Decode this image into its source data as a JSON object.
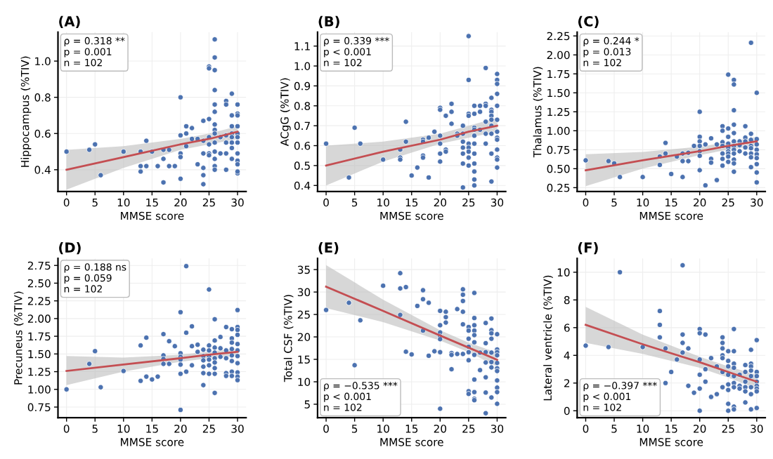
{
  "chart_data": [
    {
      "type": "scatter",
      "title": "(A)",
      "xlabel": "MMSE score",
      "ylabel": "Hippocampus (%TIV)",
      "xlim": [
        -1.5,
        31.5
      ],
      "xticks": [
        0,
        5,
        10,
        15,
        20,
        25,
        30
      ],
      "ylim": [
        0.28,
        1.16
      ],
      "yticks": [
        {
          "value": 0.4,
          "label": "0.4"
        },
        {
          "value": 0.6,
          "label": "0.6"
        },
        {
          "value": 0.8,
          "label": "0.8"
        },
        {
          "value": 1.0,
          "label": "1.0"
        }
      ],
      "grid": true,
      "annotations": [
        "ρ = 0.318 **\np = 0.001\nn = 102"
      ],
      "series": [
        {
          "type": "scatter",
          "marker": "circle",
          "color": "#4c72b0",
          "x": [
            0,
            4,
            5,
            6,
            10,
            13,
            13,
            13,
            14,
            14,
            15,
            16,
            17,
            17,
            17,
            18,
            18,
            19,
            20,
            20,
            20,
            20,
            20,
            21,
            21,
            21,
            22,
            22,
            23,
            23,
            24,
            24,
            24,
            24,
            24,
            24,
            25,
            25,
            25,
            25,
            25,
            25,
            25,
            26,
            26,
            26,
            26,
            26,
            26,
            26,
            26,
            26,
            26,
            26,
            26,
            26,
            26,
            27,
            27,
            28,
            28,
            28,
            28,
            28,
            28,
            29,
            29,
            29,
            29,
            29,
            29,
            29,
            29,
            30,
            30,
            30,
            30,
            30,
            30,
            30,
            30,
            30,
            30,
            30,
            30
          ],
          "values": [
            0.5,
            0.51,
            0.54,
            0.37,
            0.5,
            0.5,
            0.42,
            0.39,
            0.42,
            0.56,
            0.5,
            0.42,
            0.33,
            0.46,
            0.51,
            0.51,
            0.42,
            0.42,
            0.8,
            0.59,
            0.49,
            0.47,
            0.35,
            0.64,
            0.6,
            0.53,
            0.63,
            0.57,
            0.43,
            0.57,
            0.67,
            0.49,
            0.41,
            0.37,
            0.32,
            0.56,
            0.97,
            0.96,
            0.68,
            0.58,
            0.54,
            0.49,
            0.48,
            1.12,
            1.02,
            0.95,
            0.84,
            0.76,
            0.72,
            0.65,
            0.62,
            0.6,
            0.55,
            0.5,
            0.46,
            0.42,
            0.4,
            0.58,
            0.49,
            0.78,
            0.76,
            0.59,
            0.55,
            0.49,
            0.4,
            0.82,
            0.7,
            0.64,
            0.6,
            0.58,
            0.55,
            0.52,
            0.46,
            0.76,
            0.71,
            0.7,
            0.64,
            0.6,
            0.58,
            0.55,
            0.49,
            0.45,
            0.43,
            0.38,
            0.39
          ]
        },
        {
          "type": "line",
          "color": "#c44e52",
          "x": [
            0,
            10,
            20,
            25,
            30
          ],
          "values": [
            0.4,
            0.47,
            0.54,
            0.57,
            0.61
          ],
          "lower": [
            0.29,
            0.41,
            0.51,
            0.54,
            0.57
          ],
          "upper": [
            0.51,
            0.53,
            0.57,
            0.6,
            0.64
          ]
        }
      ]
    },
    {
      "type": "scatter",
      "title": "(B)",
      "xlabel": "MMSE score",
      "ylabel": "ACgG (%TIV)",
      "xlim": [
        -1.5,
        31.5
      ],
      "xticks": [
        0,
        5,
        10,
        15,
        20,
        25,
        30
      ],
      "ylim": [
        0.37,
        1.17
      ],
      "yticks": [
        {
          "value": 0.4,
          "label": "0.4"
        },
        {
          "value": 0.5,
          "label": "0.5"
        },
        {
          "value": 0.6,
          "label": "0.6"
        },
        {
          "value": 0.7,
          "label": "0.7"
        },
        {
          "value": 0.8,
          "label": "0.8"
        },
        {
          "value": 0.9,
          "label": "0.9"
        },
        {
          "value": 1.0,
          "label": "1.0"
        },
        {
          "value": 1.1,
          "label": "1.1"
        }
      ],
      "grid": true,
      "annotations": [
        "ρ = 0.339 ***\np < 0.001\nn = 102"
      ],
      "series": [
        {
          "type": "scatter",
          "marker": "circle",
          "color": "#4c72b0",
          "x": [
            0,
            4,
            5,
            6,
            10,
            13,
            13,
            13,
            14,
            14,
            15,
            16,
            17,
            17,
            17,
            17,
            18,
            18,
            19,
            20,
            20,
            20,
            20,
            20,
            20,
            21,
            21,
            21,
            22,
            22,
            22,
            23,
            23,
            24,
            24,
            24,
            24,
            24,
            24,
            24,
            25,
            25,
            25,
            25,
            25,
            25,
            25,
            25,
            25,
            26,
            26,
            26,
            26,
            26,
            26,
            26,
            26,
            26,
            26,
            26,
            27,
            27,
            27,
            28,
            28,
            28,
            28,
            28,
            28,
            29,
            29,
            29,
            29,
            29,
            29,
            29,
            29,
            29,
            30,
            30,
            30,
            30,
            30,
            30,
            30,
            30,
            30,
            30,
            30,
            30,
            30
          ],
          "values": [
            0.61,
            0.44,
            0.69,
            0.61,
            0.53,
            0.58,
            0.54,
            0.53,
            0.72,
            0.62,
            0.45,
            0.49,
            0.63,
            0.62,
            0.55,
            0.54,
            0.64,
            0.44,
            0.67,
            0.79,
            0.78,
            0.65,
            0.61,
            0.56,
            0.52,
            0.75,
            0.58,
            0.57,
            0.81,
            0.77,
            0.71,
            0.66,
            0.65,
            0.7,
            0.66,
            0.62,
            0.59,
            0.56,
            0.51,
            0.39,
            1.15,
            0.93,
            0.76,
            0.75,
            0.61,
            0.59,
            0.57,
            0.54,
            0.5,
            0.8,
            0.76,
            0.69,
            0.68,
            0.65,
            0.61,
            0.56,
            0.51,
            0.47,
            0.43,
            0.4,
            0.8,
            0.77,
            0.68,
            0.99,
            0.81,
            0.8,
            0.72,
            0.66,
            0.61,
            0.84,
            0.78,
            0.77,
            0.75,
            0.73,
            0.7,
            0.66,
            0.56,
            0.42,
            0.96,
            0.93,
            0.91,
            0.86,
            0.8,
            0.73,
            0.67,
            0.64,
            0.63,
            0.58,
            0.54,
            0.53,
            0.49
          ]
        },
        {
          "type": "line",
          "color": "#c44e52",
          "x": [
            0,
            10,
            20,
            25,
            30
          ],
          "values": [
            0.5,
            0.57,
            0.63,
            0.67,
            0.7
          ],
          "lower": [
            0.4,
            0.52,
            0.61,
            0.64,
            0.67
          ],
          "upper": [
            0.6,
            0.62,
            0.66,
            0.7,
            0.74
          ]
        }
      ]
    },
    {
      "type": "scatter",
      "title": "(C)",
      "xlabel": "MMSE score",
      "ylabel": "Thalamus (%TIV)",
      "xlim": [
        -1.5,
        31.5
      ],
      "xticks": [
        0,
        5,
        10,
        15,
        20,
        25,
        30
      ],
      "ylim": [
        0.2,
        2.3
      ],
      "yticks": [
        {
          "value": 0.25,
          "label": "0.25"
        },
        {
          "value": 0.5,
          "label": "0.50"
        },
        {
          "value": 0.75,
          "label": "0.75"
        },
        {
          "value": 1.0,
          "label": "1.00"
        },
        {
          "value": 1.25,
          "label": "1.25"
        },
        {
          "value": 1.5,
          "label": "1.50"
        },
        {
          "value": 1.75,
          "label": "1.75"
        },
        {
          "value": 2.0,
          "label": "2.00"
        },
        {
          "value": 2.25,
          "label": "2.25"
        }
      ],
      "grid": true,
      "annotations": [
        "ρ = 0.244 *\np = 0.013\nn = 102"
      ],
      "series": [
        {
          "type": "scatter",
          "marker": "circle",
          "color": "#4c72b0",
          "x": [
            0,
            4,
            5,
            6,
            10,
            13,
            13,
            14,
            14,
            15,
            16,
            17,
            17,
            17,
            18,
            18,
            19,
            20,
            20,
            20,
            20,
            20,
            20,
            20,
            21,
            21,
            22,
            22,
            22,
            23,
            23,
            24,
            24,
            24,
            24,
            24,
            24,
            24,
            25,
            25,
            25,
            25,
            25,
            25,
            25,
            25,
            25,
            26,
            26,
            26,
            26,
            26,
            26,
            26,
            26,
            26,
            26,
            26,
            26,
            27,
            27,
            27,
            28,
            28,
            28,
            28,
            28,
            29,
            29,
            29,
            29,
            29,
            29,
            29,
            29,
            30,
            30,
            30,
            30,
            30,
            30,
            30,
            30,
            30
          ],
          "values": [
            0.61,
            0.6,
            0.57,
            0.39,
            0.39,
            0.66,
            0.55,
            0.84,
            0.7,
            0.43,
            0.66,
            0.7,
            0.6,
            0.39,
            0.71,
            0.6,
            0.8,
            1.25,
            0.92,
            0.86,
            0.8,
            0.73,
            0.67,
            0.48,
            0.82,
            0.28,
            0.9,
            0.63,
            0.58,
            0.82,
            0.35,
            1.06,
            1.0,
            0.85,
            0.8,
            0.7,
            0.63,
            0.54,
            1.74,
            1.03,
            0.92,
            0.83,
            0.78,
            0.73,
            0.7,
            0.66,
            0.59,
            1.67,
            1.61,
            1.27,
            1.08,
            0.97,
            0.86,
            0.8,
            0.75,
            0.7,
            0.62,
            0.57,
            0.46,
            0.86,
            0.81,
            0.73,
            1.06,
            0.91,
            0.86,
            0.78,
            0.7,
            2.16,
            0.96,
            0.88,
            0.8,
            0.77,
            0.7,
            0.65,
            0.52,
            1.5,
            0.89,
            0.82,
            0.75,
            0.69,
            0.64,
            0.56,
            0.45,
            0.32
          ]
        },
        {
          "type": "line",
          "color": "#c44e52",
          "x": [
            0,
            10,
            20,
            25,
            30
          ],
          "values": [
            0.48,
            0.61,
            0.73,
            0.8,
            0.86
          ],
          "lower": [
            0.27,
            0.5,
            0.68,
            0.75,
            0.8
          ],
          "upper": [
            0.69,
            0.72,
            0.79,
            0.85,
            0.92
          ]
        }
      ]
    },
    {
      "type": "scatter",
      "title": "(D)",
      "xlabel": "MMSE score",
      "ylabel": "Precuneus (%TIV)",
      "xlim": [
        -1.5,
        31.5
      ],
      "xticks": [
        0,
        5,
        10,
        15,
        20,
        25,
        30
      ],
      "ylim": [
        0.6,
        2.85
      ],
      "yticks": [
        {
          "value": 0.75,
          "label": "0.75"
        },
        {
          "value": 1.0,
          "label": "1.00"
        },
        {
          "value": 1.25,
          "label": "1.25"
        },
        {
          "value": 1.5,
          "label": "1.50"
        },
        {
          "value": 1.75,
          "label": "1.75"
        },
        {
          "value": 2.0,
          "label": "2.00"
        },
        {
          "value": 2.25,
          "label": "2.25"
        },
        {
          "value": 2.5,
          "label": "2.50"
        },
        {
          "value": 2.75,
          "label": "2.75"
        }
      ],
      "grid": true,
      "annotations": [
        "ρ = 0.188 ns\np = 0.059\nn = 102"
      ],
      "series": [
        {
          "type": "scatter",
          "marker": "circle",
          "color": "#4c72b0",
          "x": [
            0,
            4,
            5,
            6,
            10,
            13,
            13,
            14,
            14,
            15,
            16,
            17,
            17,
            17,
            17,
            18,
            18,
            19,
            20,
            20,
            20,
            20,
            20,
            20,
            20,
            21,
            21,
            21,
            22,
            22,
            22,
            23,
            23,
            24,
            24,
            24,
            24,
            24,
            24,
            25,
            25,
            25,
            25,
            25,
            25,
            25,
            26,
            26,
            26,
            26,
            26,
            26,
            26,
            26,
            26,
            27,
            27,
            27,
            28,
            28,
            28,
            28,
            28,
            29,
            29,
            29,
            29,
            29,
            29,
            29,
            29,
            30,
            30,
            30,
            30,
            30,
            30,
            30,
            30,
            30,
            30,
            30
          ],
          "values": [
            1.0,
            1.36,
            1.54,
            1.03,
            1.26,
            1.62,
            1.12,
            1.73,
            1.18,
            1.14,
            1.18,
            1.78,
            1.48,
            1.43,
            1.36,
            1.68,
            1.36,
            1.61,
            2.09,
            1.51,
            1.46,
            1.42,
            1.35,
            1.22,
            0.71,
            2.74,
            1.8,
            1.25,
            1.89,
            1.61,
            1.34,
            1.63,
            1.53,
            1.56,
            1.47,
            1.41,
            1.32,
            1.23,
            1.06,
            2.41,
            1.62,
            1.55,
            1.47,
            1.42,
            1.34,
            1.22,
            1.99,
            1.69,
            1.59,
            1.52,
            1.44,
            1.38,
            1.3,
            1.22,
            0.95,
            1.74,
            1.58,
            1.46,
            1.88,
            1.55,
            1.44,
            1.23,
            1.19,
            1.85,
            1.72,
            1.66,
            1.57,
            1.48,
            1.4,
            1.25,
            1.19,
            2.12,
            1.88,
            1.84,
            1.77,
            1.64,
            1.55,
            1.47,
            1.37,
            1.24,
            1.18,
            1.13
          ]
        },
        {
          "type": "line",
          "color": "#c44e52",
          "x": [
            0,
            10,
            20,
            25,
            30
          ],
          "values": [
            1.26,
            1.35,
            1.44,
            1.49,
            1.53
          ],
          "lower": [
            1.06,
            1.25,
            1.39,
            1.44,
            1.47
          ],
          "upper": [
            1.47,
            1.45,
            1.49,
            1.53,
            1.58
          ]
        }
      ]
    },
    {
      "type": "scatter",
      "title": "(E)",
      "xlabel": "MMSE score",
      "ylabel": "Total CSF (%TIV)",
      "xlim": [
        -1.5,
        31.5
      ],
      "xticks": [
        0,
        5,
        10,
        15,
        20,
        25,
        30
      ],
      "ylim": [
        2,
        37.5
      ],
      "yticks": [
        5,
        10,
        15,
        20,
        25,
        30,
        35
      ],
      "grid": true,
      "annotations": [
        "ρ = −0.535 ***\np < 0.001\nn = 102"
      ],
      "series": [
        {
          "type": "scatter",
          "marker": "circle",
          "color": "#4c72b0",
          "x": [
            0,
            4,
            5,
            6,
            10,
            13,
            13,
            13,
            14,
            14,
            15,
            16,
            17,
            17,
            17,
            18,
            18,
            19,
            20,
            20,
            20,
            20,
            20,
            20,
            20,
            21,
            21,
            21,
            22,
            22,
            22,
            23,
            23,
            24,
            24,
            24,
            24,
            24,
            24,
            25,
            25,
            25,
            25,
            25,
            25,
            25,
            25,
            26,
            26,
            26,
            26,
            26,
            26,
            26,
            26,
            26,
            26,
            26,
            27,
            27,
            28,
            28,
            28,
            28,
            28,
            28,
            28,
            29,
            29,
            29,
            29,
            29,
            29,
            29,
            29,
            30,
            30,
            30,
            30,
            30,
            30,
            30,
            30,
            30,
            30,
            30
          ],
          "values": [
            26.0,
            27.6,
            13.7,
            23.7,
            31.4,
            34.2,
            30.8,
            24.9,
            31.1,
            16.7,
            16.1,
            26.9,
            30.4,
            28.4,
            21.4,
            27.6,
            15.8,
            16.8,
            25.8,
            22.6,
            21.0,
            20.1,
            19.5,
            16.6,
            4.0,
            25.6,
            24.4,
            23.2,
            16.4,
            16.0,
            12.8,
            26.2,
            16.2,
            30.6,
            29.4,
            28.0,
            25.6,
            22.8,
            16.2,
            22.2,
            21.4,
            19.6,
            17.8,
            16.6,
            14.8,
            7.9,
            7.3,
            29.8,
            24.2,
            22.6,
            21.4,
            20.4,
            18.8,
            16.0,
            10.5,
            7.7,
            6.2,
            5.9,
            16.5,
            12.6,
            23.1,
            18.6,
            16.6,
            14.3,
            11.0,
            7.6,
            3.0,
            24.1,
            21.5,
            20.8,
            19.6,
            16.5,
            14.4,
            13.2,
            6.5,
            20.6,
            17.2,
            16.6,
            15.9,
            14.2,
            13.0,
            12.4,
            10.3,
            8.7,
            7.7,
            5.1
          ]
        },
        {
          "type": "line",
          "color": "#c44e52",
          "x": [
            0,
            10,
            20,
            25,
            30
          ],
          "values": [
            31.2,
            25.8,
            20.3,
            17.6,
            14.9
          ],
          "lower": [
            26.4,
            23.3,
            19.2,
            16.6,
            13.4
          ],
          "upper": [
            36.0,
            28.3,
            21.5,
            18.7,
            16.5
          ]
        }
      ]
    },
    {
      "type": "scatter",
      "title": "(F)",
      "xlabel": "MMSE score",
      "ylabel": "Lateral ventricle (%TIV)",
      "xlim": [
        -1.5,
        31.5
      ],
      "xticks": [
        0,
        5,
        10,
        15,
        20,
        25,
        30
      ],
      "ylim": [
        -0.5,
        11
      ],
      "yticks": [
        0,
        2,
        4,
        6,
        8,
        10
      ],
      "grid": true,
      "annotations": [
        "ρ = −0.397 ***\np < 0.001\nn = 102"
      ],
      "series": [
        {
          "type": "scatter",
          "marker": "circle",
          "color": "#4c72b0",
          "x": [
            0,
            4,
            6,
            10,
            13,
            13,
            13,
            14,
            14,
            15,
            16,
            17,
            17,
            17,
            17,
            18,
            18,
            19,
            20,
            20,
            20,
            20,
            20,
            20,
            21,
            21,
            21,
            22,
            22,
            23,
            23,
            24,
            24,
            24,
            24,
            24,
            24,
            24,
            25,
            25,
            25,
            25,
            25,
            25,
            25,
            25,
            26,
            26,
            26,
            26,
            26,
            26,
            26,
            26,
            26,
            27,
            27,
            27,
            28,
            28,
            28,
            28,
            28,
            28,
            29,
            29,
            29,
            29,
            29,
            29,
            29,
            29,
            30,
            30,
            30,
            30,
            30,
            30,
            30,
            30
          ],
          "values": [
            4.7,
            4.6,
            10.0,
            4.6,
            7.2,
            6.2,
            5.3,
            4.5,
            2.0,
            2.8,
            3.7,
            10.5,
            5.5,
            4.9,
            4.2,
            4.5,
            1.8,
            1.3,
            5.9,
            5.6,
            3.7,
            2.6,
            1.6,
            0.0,
            5.5,
            3.0,
            2.1,
            3.8,
            1.0,
            3.2,
            1.2,
            5.3,
            4.9,
            4.5,
            4.0,
            3.8,
            2.8,
            1.7,
            4.3,
            3.6,
            3.2,
            2.6,
            1.9,
            1.5,
            0.5,
            0.0,
            5.9,
            4.3,
            3.4,
            3.1,
            2.5,
            2.0,
            1.7,
            0.3,
            0.1,
            2.6,
            1.8,
            1.6,
            3.3,
            2.8,
            2.1,
            1.7,
            1.4,
            0.6,
            4.4,
            3.4,
            3.2,
            2.9,
            2.5,
            1.7,
            1.2,
            0.1,
            5.1,
            2.8,
            2.5,
            2.1,
            1.8,
            1.6,
            1.4,
            0.2
          ]
        },
        {
          "type": "line",
          "color": "#c44e52",
          "x": [
            0,
            10,
            20,
            25,
            30
          ],
          "values": [
            6.2,
            4.8,
            3.5,
            2.8,
            2.1
          ],
          "lower": [
            4.9,
            4.1,
            3.1,
            2.4,
            1.6
          ],
          "upper": [
            7.5,
            5.5,
            3.9,
            3.2,
            2.6
          ]
        }
      ]
    }
  ]
}
